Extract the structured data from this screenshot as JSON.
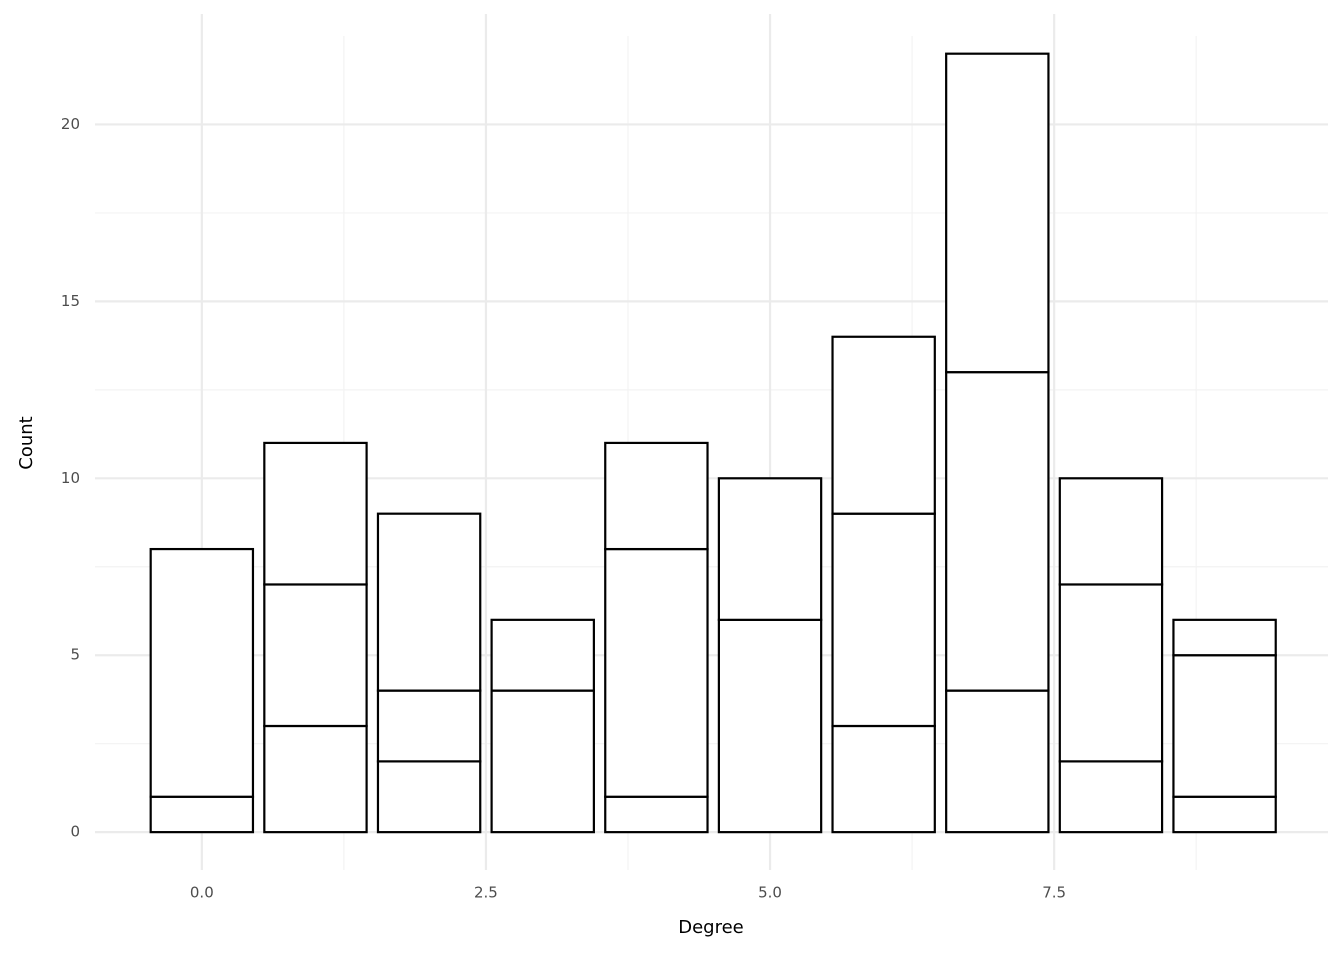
{
  "chart_data": {
    "type": "stacked_bar",
    "x_label": "Degree",
    "y_label": "Count",
    "x": [
      0,
      1,
      2,
      3,
      4,
      5,
      6,
      7,
      8,
      9
    ],
    "series": [
      {
        "color": "#ffffff",
        "values": [
          1,
          3,
          2,
          4,
          1,
          6,
          3,
          4,
          2,
          1
        ]
      },
      {
        "color": "#ffffff",
        "values": [
          7,
          4,
          2,
          2,
          7,
          4,
          6,
          9,
          5,
          4
        ]
      },
      {
        "color": "#ffffff",
        "values": [
          null,
          4,
          5,
          null,
          3,
          null,
          5,
          9,
          3,
          1
        ]
      }
    ],
    "edgecolor": "#000000",
    "xlim": [
      -0.94,
      9.91
    ],
    "xticks": [
      {
        "value": 0,
        "label": "0.0"
      },
      2.5,
      {
        "value": 5,
        "label": "5.0"
      },
      7.5
    ],
    "ylim": [
      -1.07,
      22.5
    ],
    "yticks": [
      0,
      5,
      10,
      15,
      20
    ],
    "grid": true
  }
}
